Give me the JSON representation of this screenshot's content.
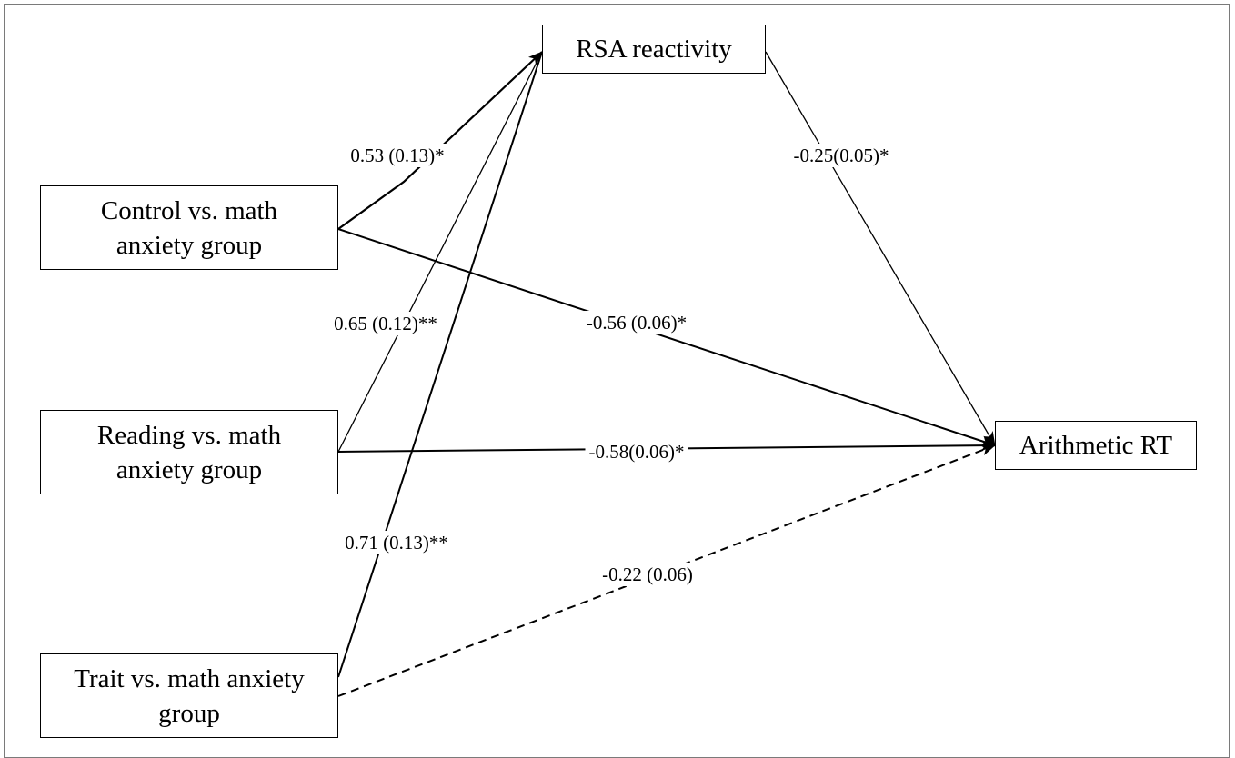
{
  "nodes": {
    "rsa": [
      "RSA reactivity"
    ],
    "arith": [
      "Arithmetic RT"
    ],
    "control": [
      "Control vs. math",
      "anxiety group"
    ],
    "reading": [
      "Reading vs. math",
      "anxiety group"
    ],
    "trait": [
      "Trait vs. math anxiety",
      "group"
    ]
  },
  "paths": {
    "control_rsa": "0.53 (0.13)*",
    "reading_rsa": "0.65 (0.12)**",
    "trait_rsa": "0.71 (0.13)**",
    "rsa_arith": "-0.25(0.05)*",
    "control_arith": "-0.56 (0.06)*",
    "reading_arith": "-0.58(0.06)*",
    "trait_arith": "-0.22 (0.06)"
  },
  "styles": {
    "line_color": "#000000",
    "non_significant_path": "dashed"
  }
}
